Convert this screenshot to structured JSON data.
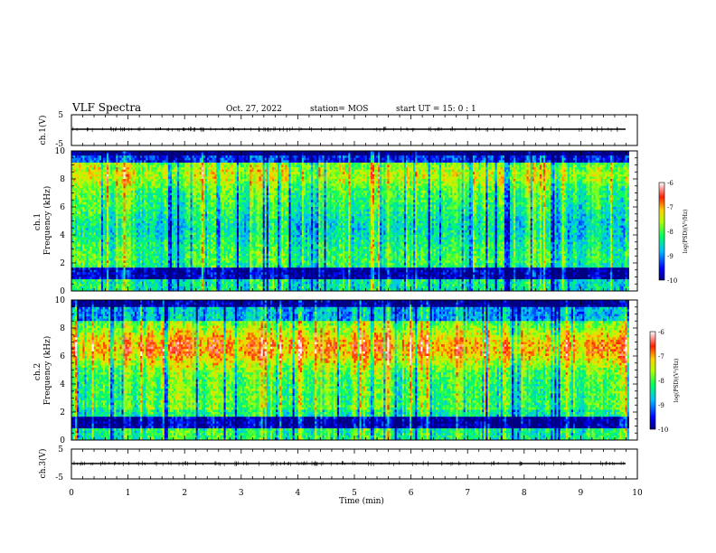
{
  "header": {
    "title": "VLF Spectra",
    "date": "Oct. 27, 2022",
    "station": "station= MOS",
    "start": "start  UT =   15: 0  : 1"
  },
  "chart_data": [
    {
      "type": "line",
      "panel": "ch1-waveform",
      "ylabel": "ch.1(V)",
      "yticks": [
        "5",
        "-5"
      ],
      "ylim": [
        -5,
        5
      ],
      "xlim": [
        0,
        10
      ],
      "baseline_value": 0
    },
    {
      "type": "heatmap",
      "panel": "ch1-spectrogram",
      "ylabel": "ch.1\nFrequency (kHz)",
      "yticks": [
        "10",
        "8",
        "6",
        "4",
        "2",
        "0"
      ],
      "ylim": [
        0,
        10
      ],
      "xlim": [
        0,
        9.85
      ],
      "colorbar": {
        "label": "log(PSD)(V²/Hz)",
        "ticks": [
          "-6",
          "-7",
          "-8",
          "-9",
          "-10"
        ],
        "range": [
          -10,
          -6
        ]
      },
      "dominant_band_khz": [
        2,
        9.5
      ],
      "low_band_khz": [
        0,
        1.5
      ]
    },
    {
      "type": "heatmap",
      "panel": "ch2-spectrogram",
      "ylabel": "ch.2\nFrequency (kHz)",
      "yticks": [
        "10",
        "8",
        "6",
        "4",
        "2",
        "0"
      ],
      "ylim": [
        0,
        10
      ],
      "xlim": [
        0,
        9.85
      ],
      "colorbar": {
        "label": "log(PSD)(V²/Hz)",
        "ticks": [
          "-6",
          "-7",
          "-8",
          "-9",
          "-10"
        ],
        "range": [
          -10,
          -6
        ]
      },
      "dominant_band_khz": [
        5,
        8
      ],
      "low_band_khz": [
        0,
        1.5
      ]
    },
    {
      "type": "line",
      "panel": "ch3-waveform",
      "ylabel": "ch.3(V)",
      "yticks": [
        "5",
        "-5"
      ],
      "ylim": [
        -5,
        5
      ],
      "xlim": [
        0,
        10
      ],
      "baseline_value": 0
    }
  ],
  "xaxis": {
    "label": "Time  (min)",
    "ticks": [
      "0",
      "1",
      "2",
      "3",
      "4",
      "5",
      "6",
      "7",
      "8",
      "9",
      "10"
    ]
  }
}
